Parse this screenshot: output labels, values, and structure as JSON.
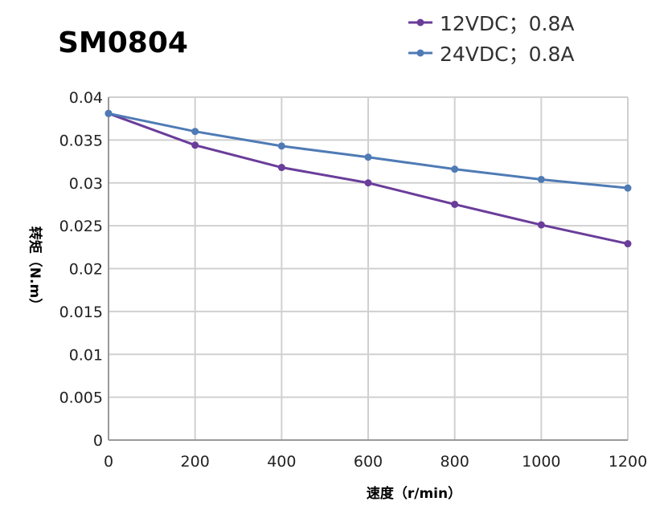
{
  "chart_data": {
    "type": "line",
    "title": "SM0804",
    "xlabel": "速度（r/min）",
    "ylabel": "转矩（N.m）",
    "x": [
      0,
      200,
      400,
      600,
      800,
      1000,
      1200
    ],
    "xlim": [
      0,
      1200
    ],
    "ylim": [
      0,
      0.04
    ],
    "xticks": [
      "0",
      "200",
      "400",
      "600",
      "800",
      "1000",
      "1200"
    ],
    "yticks": [
      "0",
      "0.005",
      "0.01",
      "0.015",
      "0.02",
      "0.025",
      "0.03",
      "0.035",
      "0.04"
    ],
    "grid": true,
    "legend_position": "top-right",
    "series": [
      {
        "name": "12VDC；0.8A",
        "color": "#6a3d9a",
        "values": [
          0.0381,
          0.0344,
          0.0318,
          0.03,
          0.0275,
          0.0251,
          0.0229
        ]
      },
      {
        "name": "24VDC；0.8A",
        "color": "#4f7bb5",
        "values": [
          0.0381,
          0.036,
          0.0343,
          0.033,
          0.0316,
          0.0304,
          0.0294
        ]
      }
    ]
  }
}
